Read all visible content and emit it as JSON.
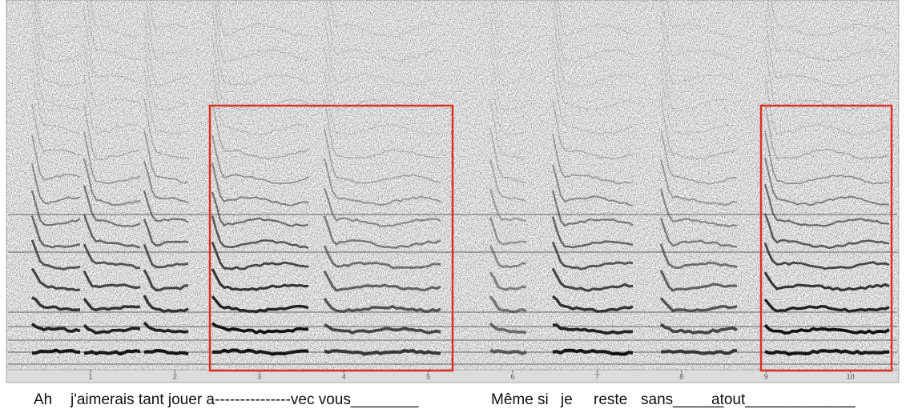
{
  "time_axis": {
    "ticks": [
      1,
      2,
      3,
      4,
      5,
      6,
      7,
      8,
      9,
      10
    ]
  },
  "lyrics": [
    "Ah",
    "j'aimerais tant jouer a---------------vec vous________",
    "Même",
    "si",
    "je",
    "reste",
    "sans______",
    "atout_____________"
  ]
}
